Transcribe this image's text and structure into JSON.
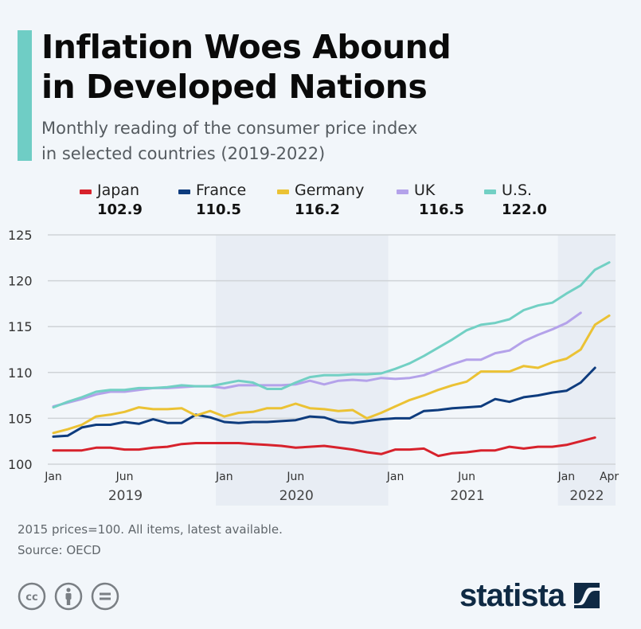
{
  "header": {
    "title_line1": "Inflation Woes Abound",
    "title_line2": "in Developed Nations",
    "subtitle_line1": "Monthly reading of the consumer price index",
    "subtitle_line2": "in selected countries (2019-2022)",
    "accent_color": "#6fcdc5"
  },
  "legend": [
    {
      "name": "Japan",
      "value": "102.9",
      "color": "#d7222c"
    },
    {
      "name": "France",
      "value": "110.5",
      "color": "#0e3c7e"
    },
    {
      "name": "Germany",
      "value": "116.2",
      "color": "#ebc234"
    },
    {
      "name": "UK",
      "value": "116.5",
      "color": "#b4a2ea"
    },
    {
      "name": "U.S.",
      "value": "122.0",
      "color": "#72d0c4"
    }
  ],
  "chart_data": {
    "type": "line",
    "title": "Inflation Woes Abound in Developed Nations",
    "subtitle": "Monthly reading of the consumer price index in selected countries (2019-2022)",
    "xlabel": "",
    "ylabel": "",
    "ylim": [
      100,
      125
    ],
    "yticks": [
      100,
      105,
      110,
      115,
      120,
      125
    ],
    "grid": true,
    "legend_position": "top",
    "x_start": "Jan 2019",
    "x_end": "Apr 2022",
    "month_ticks": [
      {
        "label": "Jan",
        "index": 0
      },
      {
        "label": "Jun",
        "index": 5
      },
      {
        "label": "Jan",
        "index": 12
      },
      {
        "label": "Jun",
        "index": 17
      },
      {
        "label": "Jan",
        "index": 24
      },
      {
        "label": "Jun",
        "index": 29
      },
      {
        "label": "Jan",
        "index": 36
      },
      {
        "label": "Apr",
        "index": 39
      }
    ],
    "year_labels": [
      {
        "label": "2019",
        "from": 0,
        "to": 11,
        "shaded": false
      },
      {
        "label": "2020",
        "from": 12,
        "to": 23,
        "shaded": true
      },
      {
        "label": "2021",
        "from": 24,
        "to": 35,
        "shaded": false
      },
      {
        "label": "2022",
        "from": 36,
        "to": 39,
        "shaded": true
      }
    ],
    "series": [
      {
        "name": "Japan",
        "color": "#d7222c",
        "values": [
          101.5,
          101.5,
          101.5,
          101.8,
          101.8,
          101.6,
          101.6,
          101.8,
          101.9,
          102.2,
          102.3,
          102.3,
          102.3,
          102.3,
          102.2,
          102.1,
          102.0,
          101.8,
          101.9,
          102.0,
          101.8,
          101.6,
          101.3,
          101.1,
          101.6,
          101.6,
          101.7,
          100.9,
          101.2,
          101.3,
          101.5,
          101.5,
          101.9,
          101.7,
          101.9,
          101.9,
          102.1,
          102.5,
          102.9
        ]
      },
      {
        "name": "France",
        "color": "#0e3c7e",
        "values": [
          103.0,
          103.1,
          104.0,
          104.3,
          104.3,
          104.6,
          104.4,
          104.9,
          104.5,
          104.5,
          105.4,
          105.1,
          104.6,
          104.5,
          104.6,
          104.6,
          104.7,
          104.8,
          105.2,
          105.1,
          104.6,
          104.5,
          104.7,
          104.9,
          105.0,
          105.0,
          105.8,
          105.9,
          106.1,
          106.2,
          106.3,
          107.1,
          106.8,
          107.3,
          107.5,
          107.8,
          108.0,
          108.9,
          110.5
        ]
      },
      {
        "name": "Germany",
        "color": "#ebc234",
        "values": [
          103.4,
          103.8,
          104.3,
          105.2,
          105.4,
          105.7,
          106.2,
          106.0,
          106.0,
          106.1,
          105.3,
          105.8,
          105.2,
          105.6,
          105.7,
          106.1,
          106.1,
          106.6,
          106.1,
          106.0,
          105.8,
          105.9,
          105.0,
          105.6,
          106.3,
          107.0,
          107.5,
          108.1,
          108.6,
          109.0,
          110.1,
          110.1,
          110.1,
          110.7,
          110.5,
          111.1,
          111.5,
          112.5,
          115.2,
          116.2
        ]
      },
      {
        "name": "UK",
        "color": "#b4a2ea",
        "values": [
          106.3,
          106.7,
          107.1,
          107.6,
          107.9,
          107.9,
          108.1,
          108.3,
          108.3,
          108.4,
          108.5,
          108.5,
          108.3,
          108.6,
          108.6,
          108.6,
          108.6,
          108.7,
          109.1,
          108.7,
          109.1,
          109.2,
          109.1,
          109.4,
          109.3,
          109.4,
          109.7,
          110.3,
          110.9,
          111.4,
          111.4,
          112.1,
          112.4,
          113.4,
          114.1,
          114.7,
          115.4,
          116.5
        ]
      },
      {
        "name": "U.S.",
        "color": "#72d0c4",
        "values": [
          106.2,
          106.8,
          107.3,
          107.9,
          108.1,
          108.1,
          108.3,
          108.3,
          108.4,
          108.6,
          108.5,
          108.5,
          108.8,
          109.1,
          108.9,
          108.2,
          108.2,
          108.9,
          109.5,
          109.7,
          109.7,
          109.8,
          109.8,
          109.9,
          110.4,
          111.0,
          111.8,
          112.7,
          113.6,
          114.6,
          115.2,
          115.4,
          115.8,
          116.8,
          117.3,
          117.6,
          118.6,
          119.5,
          121.2,
          122.0
        ]
      }
    ]
  },
  "footer": {
    "note": "2015 prices=100. All items, latest available.",
    "source": "Source: OECD",
    "logo_text": "statista",
    "license_icons": [
      "cc-icon",
      "attribution-icon",
      "no-derivatives-icon"
    ]
  }
}
